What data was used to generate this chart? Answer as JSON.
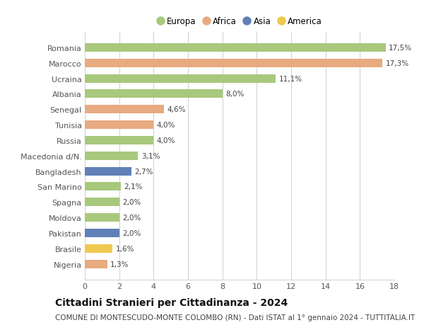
{
  "countries": [
    "Romania",
    "Marocco",
    "Ucraina",
    "Albania",
    "Senegal",
    "Tunisia",
    "Russia",
    "Macedonia d/N.",
    "Bangladesh",
    "San Marino",
    "Spagna",
    "Moldova",
    "Pakistan",
    "Brasile",
    "Nigeria"
  ],
  "values": [
    17.5,
    17.3,
    11.1,
    8.0,
    4.6,
    4.0,
    4.0,
    3.1,
    2.7,
    2.1,
    2.0,
    2.0,
    2.0,
    1.6,
    1.3
  ],
  "labels": [
    "17,5%",
    "17,3%",
    "11,1%",
    "8,0%",
    "4,6%",
    "4,0%",
    "4,0%",
    "3,1%",
    "2,7%",
    "2,1%",
    "2,0%",
    "2,0%",
    "2,0%",
    "1,6%",
    "1,3%"
  ],
  "continents": [
    "Europa",
    "Africa",
    "Europa",
    "Europa",
    "Africa",
    "Africa",
    "Europa",
    "Europa",
    "Asia",
    "Europa",
    "Europa",
    "Europa",
    "Asia",
    "America",
    "Africa"
  ],
  "continent_colors": {
    "Europa": "#a8c87c",
    "Africa": "#e8aa80",
    "Asia": "#6080b8",
    "America": "#f0c850"
  },
  "legend_order": [
    "Europa",
    "Africa",
    "Asia",
    "America"
  ],
  "title": "Cittadini Stranieri per Cittadinanza - 2024",
  "subtitle": "COMUNE DI MONTESCUDO-MONTE COLOMBO (RN) - Dati ISTAT al 1° gennaio 2024 - TUTTITALIA.IT",
  "xlim": [
    0,
    18
  ],
  "xticks": [
    0,
    2,
    4,
    6,
    8,
    10,
    12,
    14,
    16,
    18
  ],
  "bg_color": "#ffffff",
  "grid_color": "#d0d0d0",
  "bar_height": 0.55,
  "label_fontsize": 7.5,
  "title_fontsize": 10,
  "subtitle_fontsize": 7.5,
  "ytick_fontsize": 8,
  "xtick_fontsize": 8,
  "legend_fontsize": 8.5
}
